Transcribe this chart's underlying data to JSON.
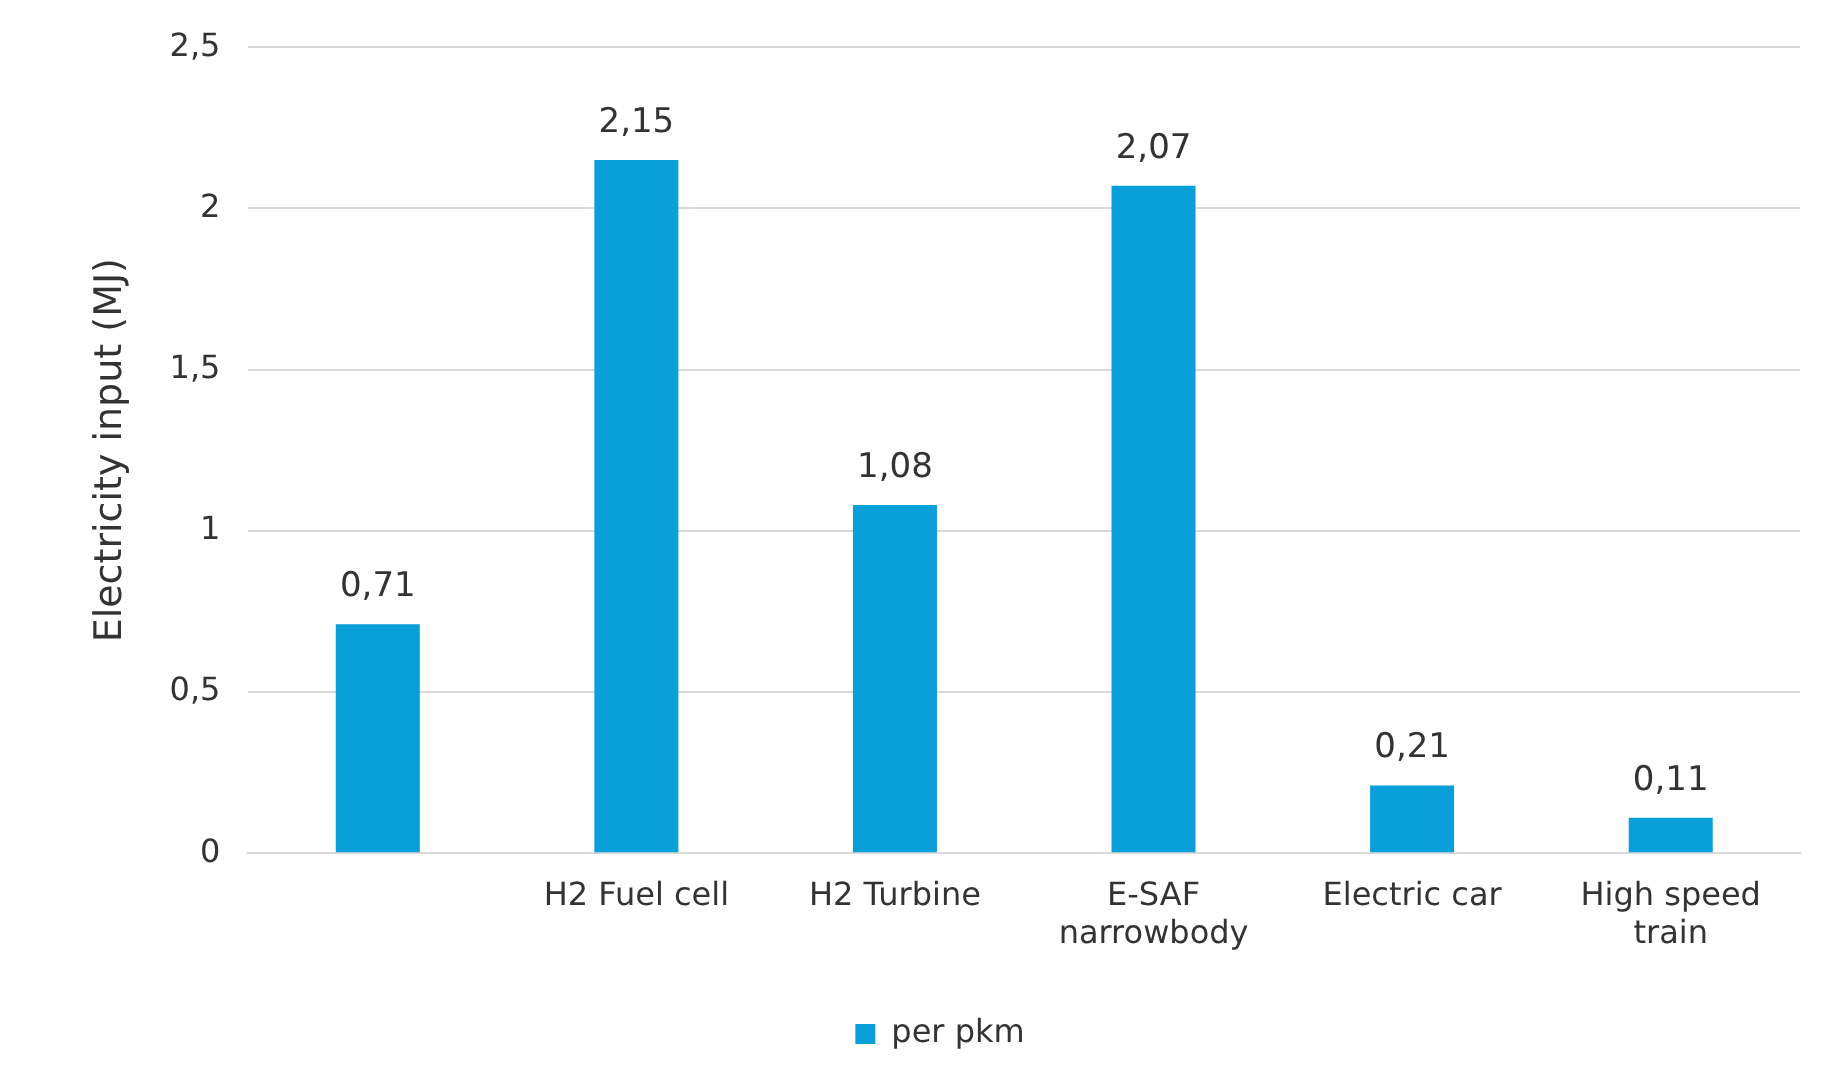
{
  "chart_data": {
    "type": "bar",
    "ylabel": "Electricity input (MJ)",
    "categories": [
      null,
      "H2 Fuel cell",
      "H2 Turbine",
      "E-SAF narrowbody",
      "Electric car",
      "High speed train"
    ],
    "series": [
      {
        "name": "per pkm",
        "color": "#0a9fd8",
        "values": [
          0.71,
          2.15,
          1.08,
          2.07,
          0.21,
          0.11
        ],
        "value_labels": [
          "0,71",
          "2,15",
          "1,08",
          "2,07",
          "0,21",
          "0,11"
        ]
      }
    ],
    "ylim": [
      0,
      2.5
    ],
    "yticks": [
      0,
      {
        "value": 0.5,
        "label": "0,5"
      },
      1,
      {
        "value": 1.5,
        "label": "1,5"
      },
      2,
      {
        "value": 2.5,
        "label": "2,5"
      }
    ],
    "grid": "y",
    "legend": "bottom"
  }
}
